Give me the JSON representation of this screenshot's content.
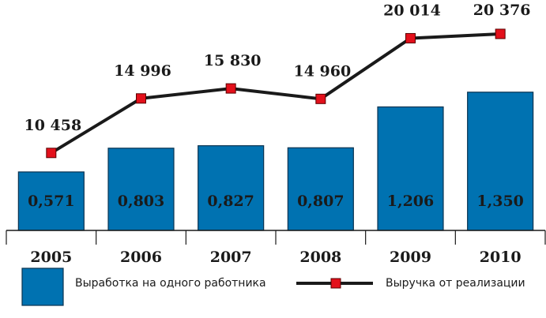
{
  "chart_data": {
    "type": "bar",
    "categories": [
      "2005",
      "2006",
      "2007",
      "2008",
      "2009",
      "2010"
    ],
    "ylim": [
      0,
      2.25
    ],
    "y2lim": [
      4000,
      23200
    ],
    "series": [
      {
        "name": "Выработка на одного работника",
        "type": "bar",
        "color": "#0072b1",
        "values": [
          0.571,
          0.803,
          0.827,
          0.807,
          1.206,
          1.35
        ],
        "value_labels": [
          "0,571",
          "0,803",
          "0,827",
          "0,807",
          "1,206",
          "1,350"
        ]
      },
      {
        "name": "Выручка от реализации",
        "type": "line",
        "axis": "y2",
        "color": "#1a1a1a",
        "marker_color": "#e3101b",
        "values": [
          10458,
          14996,
          15830,
          14960,
          20014,
          20376
        ],
        "value_labels": [
          "10 458",
          "14 996",
          "15 830",
          "14 960",
          "20 014",
          "20 376"
        ]
      }
    ],
    "legend": "bottom"
  }
}
